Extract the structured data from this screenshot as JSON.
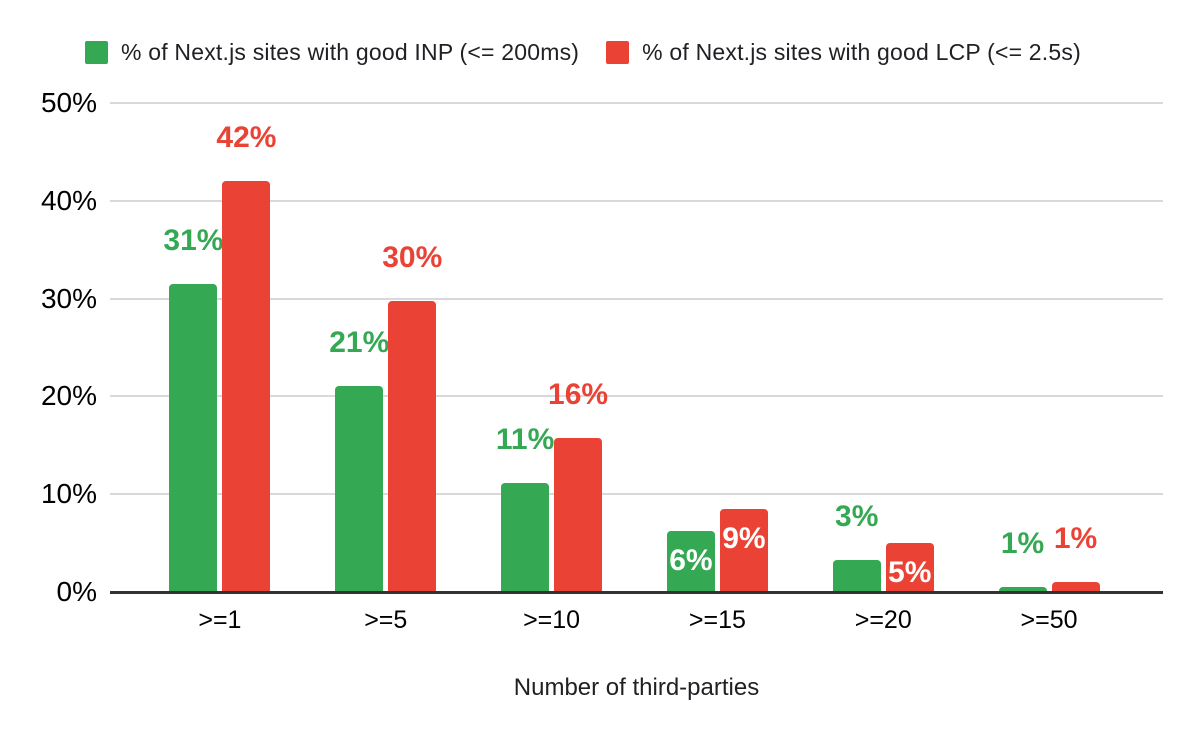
{
  "chart_data": {
    "type": "bar",
    "title": "",
    "xlabel": "Number of third-parties",
    "ylabel": "",
    "categories": [
      ">=1",
      ">=5",
      ">=10",
      ">=15",
      ">=20",
      ">=50"
    ],
    "y_ticks": [
      "0%",
      "10%",
      "20%",
      "30%",
      "40%",
      "50%"
    ],
    "ylim": [
      0,
      50
    ],
    "grid": true,
    "legend_position": "top",
    "series": [
      {
        "name": "% of Next.js sites with good INP (<= 200ms)",
        "color": "#34a853",
        "values": [
          31,
          21,
          11,
          6,
          3,
          1
        ],
        "labels": [
          "31%",
          "21%",
          "11%",
          "6%",
          "3%",
          "1%"
        ],
        "bar_heights_pct": [
          31.5,
          21.1,
          11.1,
          6.2,
          3.3,
          0.5
        ],
        "label_placement": [
          "above",
          "above",
          "above",
          "inside",
          "above",
          "above"
        ]
      },
      {
        "name": "% of Next.js sites with good LCP (<= 2.5s)",
        "color": "#ea4335",
        "values": [
          42,
          30,
          16,
          9,
          5,
          1
        ],
        "labels": [
          "42%",
          "30%",
          "16%",
          "9%",
          "5%",
          "1%"
        ],
        "bar_heights_pct": [
          42.0,
          29.8,
          15.7,
          8.5,
          5.0,
          1.0
        ],
        "label_placement": [
          "above",
          "above",
          "above",
          "inside",
          "inside",
          "above"
        ]
      }
    ],
    "colors": {
      "inp_green": "#34a853",
      "lcp_red": "#ea4335",
      "gridline": "#d9d9d9",
      "baseline": "#333333",
      "inside_label": "#ffffff",
      "axis_text": "#000000",
      "title_text": "#202124",
      "background": "#ffffff"
    }
  }
}
